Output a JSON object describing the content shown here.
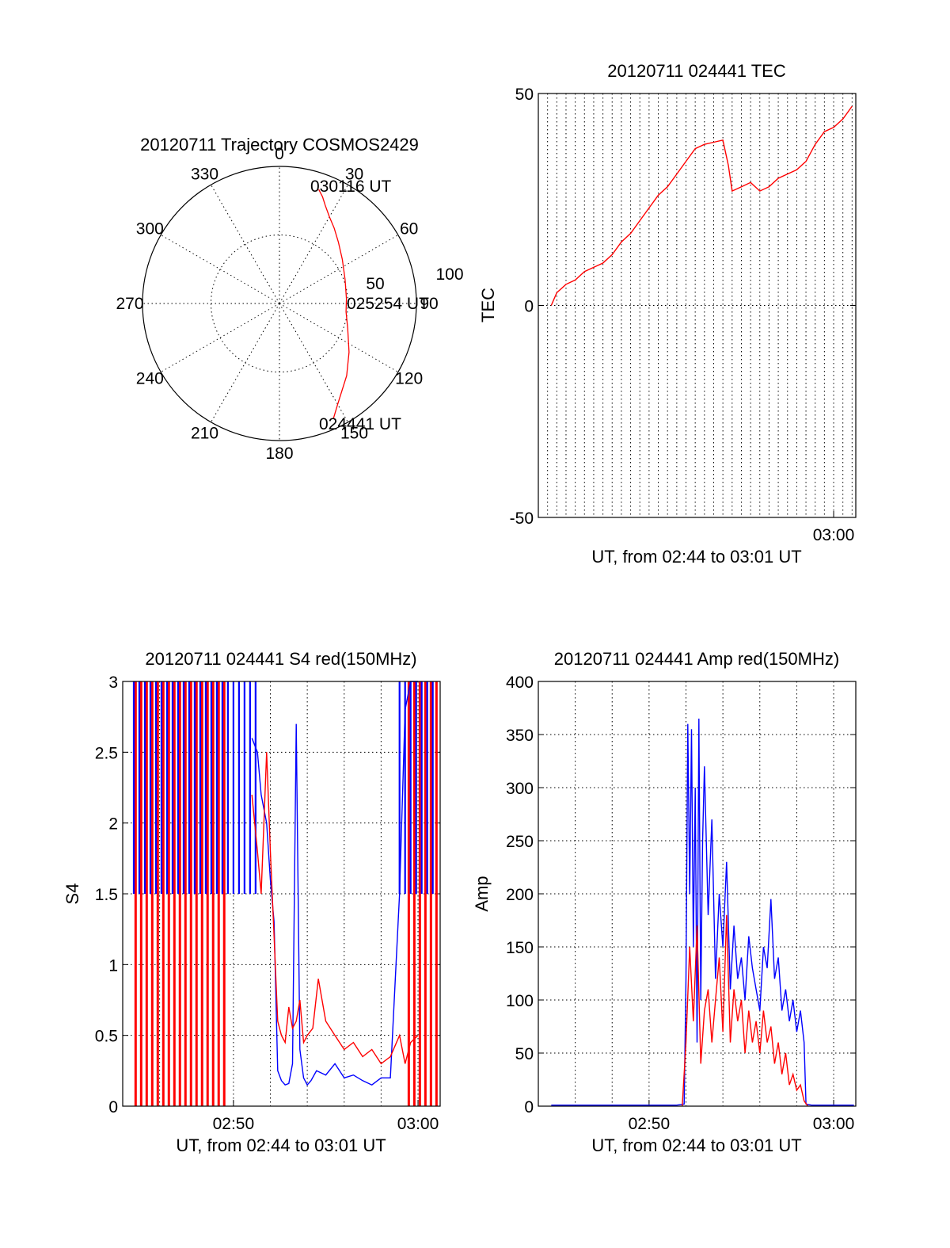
{
  "colors": {
    "red": "#ff0000",
    "blue": "#0000ff",
    "axes": "#000000",
    "background": "#ffffff"
  },
  "chart_data": [
    {
      "id": "polar",
      "type": "polar",
      "title": "20120711 Trajectory COSMOS2429",
      "azimuth_ticks": [
        "0",
        "30",
        "60",
        "90",
        "120",
        "150",
        "180",
        "210",
        "240",
        "270",
        "300",
        "330"
      ],
      "radial_ticks": [
        "50",
        "100"
      ],
      "rlim": [
        0,
        100
      ],
      "grid": true,
      "trajectory": {
        "color": "#ff0000",
        "azimuth_deg": [
          19,
          22,
          25,
          30,
          36,
          44,
          55,
          70,
          86,
          97,
          110,
          125,
          137,
          150,
          155
        ],
        "radius": [
          88,
          84,
          79,
          73,
          68,
          62,
          56,
          51,
          49,
          49,
          53,
          62,
          72,
          85,
          93
        ]
      },
      "labels": {
        "start": "024441 UT",
        "mid": "025254 UT",
        "end": "030116 UT"
      }
    },
    {
      "id": "tec",
      "type": "line",
      "title": "20120711 024441 TEC",
      "xlabel": "UT, from 02:44 to 03:01 UT",
      "ylabel": "TEC",
      "ylim": [
        -50,
        50
      ],
      "xlim_minutes": [
        44.0,
        61.2
      ],
      "y_ticks": [
        "-50",
        "0",
        "50"
      ],
      "x_ticks": [
        {
          "label": "03:00",
          "minute": 60.0
        }
      ],
      "minor_grid_minutes": 0.5,
      "grid": true,
      "series": [
        {
          "color": "#ff0000",
          "x": [
            44.7,
            45.0,
            45.5,
            46.0,
            46.5,
            47.0,
            47.5,
            48.0,
            48.5,
            49.0,
            49.5,
            50.0,
            50.5,
            51.0,
            51.5,
            52.0,
            52.5,
            53.0,
            53.5,
            54.0,
            54.3,
            54.5,
            55.0,
            55.5,
            56.0,
            56.5,
            57.0,
            57.5,
            58.0,
            58.5,
            59.0,
            59.5,
            60.0,
            60.5,
            61.0
          ],
          "y": [
            0,
            3,
            5,
            6,
            8,
            9,
            10,
            12,
            15,
            17,
            20,
            23,
            26,
            28,
            31,
            34,
            37,
            38,
            38.5,
            39,
            33,
            27,
            28,
            29,
            27,
            28,
            30,
            31,
            32,
            34,
            38,
            41,
            42,
            44,
            47
          ]
        }
      ]
    },
    {
      "id": "s4",
      "type": "line",
      "title": "20120711 024441 S4 red(150MHz)",
      "xlabel": "UT, from 02:44 to 03:01 UT",
      "ylabel": "S4",
      "ylim": [
        0,
        3
      ],
      "xlim_minutes": [
        44.0,
        61.2
      ],
      "y_ticks": [
        "0",
        "0.5",
        "1",
        "1.5",
        "2",
        "2.5",
        "3"
      ],
      "x_ticks": [
        {
          "label": "02:50",
          "minute": 50.0
        },
        {
          "label": "03:00",
          "minute": 60.0
        }
      ],
      "grid": true,
      "series": [
        {
          "name": "",
          "color": "#0000ff",
          "x": [
            51.0,
            51.3,
            51.5,
            51.8,
            52.0,
            52.2,
            52.4,
            52.6,
            52.8,
            53.0,
            53.2,
            53.4,
            53.6,
            53.8,
            54.0,
            54.2,
            54.5,
            55.0,
            55.5,
            56.0,
            56.5,
            57.0,
            57.5,
            58.0,
            58.5,
            59.0,
            59.3,
            59.6,
            60.0
          ],
          "y": [
            2.6,
            2.5,
            2.2,
            2.0,
            1.6,
            1.3,
            0.25,
            0.18,
            0.15,
            0.16,
            0.3,
            2.7,
            0.4,
            0.2,
            0.15,
            0.18,
            0.25,
            0.22,
            0.3,
            0.2,
            0.22,
            0.18,
            0.15,
            0.2,
            0.2,
            1.5,
            2.8,
            3,
            3
          ]
        },
        {
          "name": "",
          "color": "#ff0000",
          "x": [
            51.0,
            51.3,
            51.5,
            51.8,
            52.0,
            52.2,
            52.4,
            52.6,
            52.8,
            53.0,
            53.2,
            53.4,
            53.6,
            53.8,
            54.0,
            54.3,
            54.6,
            55.0,
            55.5,
            56.0,
            56.5,
            57.0,
            57.5,
            58.0,
            58.5,
            59.0,
            59.3,
            59.6,
            60.0
          ],
          "y": [
            2.2,
            1.8,
            1.5,
            2.5,
            1.8,
            1.2,
            0.6,
            0.5,
            0.45,
            0.7,
            0.55,
            0.6,
            0.75,
            0.45,
            0.5,
            0.55,
            0.9,
            0.6,
            0.5,
            0.4,
            0.45,
            0.35,
            0.4,
            0.3,
            0.35,
            0.5,
            0.3,
            0.45,
            0.5
          ]
        }
      ],
      "saturated_red_minutes": [
        44.7,
        45.0,
        45.3,
        45.6,
        45.9,
        46.2,
        46.5,
        46.8,
        47.1,
        47.4,
        47.7,
        48.0,
        48.3,
        48.6,
        48.9,
        49.2,
        49.5,
        59.5,
        59.8,
        60.1,
        60.4,
        60.7,
        61.0
      ],
      "saturated_blue_minutes": [
        44.6,
        44.9,
        45.2,
        45.5,
        45.8,
        46.1,
        46.4,
        46.7,
        47.0,
        47.3,
        47.6,
        47.9,
        48.2,
        48.5,
        48.8,
        49.1,
        49.4,
        49.7,
        50.0,
        50.3,
        50.6,
        50.9,
        51.2,
        59.0,
        59.3,
        59.6,
        59.9,
        60.2,
        60.5,
        60.8
      ]
    },
    {
      "id": "amp",
      "type": "line",
      "title": "20120711 024441 Amp red(150MHz)",
      "xlabel": "UT, from 02:44 to 03:01 UT",
      "ylabel": "Amp",
      "ylim": [
        0,
        400
      ],
      "xlim_minutes": [
        44.0,
        61.2
      ],
      "y_ticks": [
        "0",
        "50",
        "100",
        "150",
        "200",
        "250",
        "300",
        "350",
        "400"
      ],
      "x_ticks": [
        {
          "label": "02:50",
          "minute": 50.0
        },
        {
          "label": "03:00",
          "minute": 60.0
        }
      ],
      "grid": true,
      "series": [
        {
          "name": "",
          "color": "#0000ff",
          "x": [
            44.7,
            46.0,
            48.0,
            50.0,
            51.5,
            51.9,
            52.0,
            52.1,
            52.2,
            52.3,
            52.4,
            52.5,
            52.6,
            52.7,
            52.8,
            52.9,
            53.0,
            53.2,
            53.4,
            53.6,
            53.8,
            54.0,
            54.2,
            54.4,
            54.6,
            54.8,
            55.0,
            55.2,
            55.4,
            55.6,
            55.8,
            56.0,
            56.2,
            56.4,
            56.6,
            56.8,
            57.0,
            57.2,
            57.4,
            57.6,
            57.8,
            58.0,
            58.2,
            58.4,
            58.5,
            58.8,
            59.5,
            60.5,
            61.1
          ],
          "y": [
            1,
            1,
            1,
            1,
            1,
            2,
            120,
            360,
            200,
            355,
            150,
            300,
            60,
            365,
            100,
            250,
            320,
            180,
            270,
            120,
            200,
            150,
            230,
            110,
            170,
            120,
            140,
            100,
            160,
            130,
            110,
            90,
            150,
            130,
            195,
            120,
            140,
            90,
            110,
            80,
            100,
            70,
            90,
            60,
            2,
            1,
            1,
            1,
            1
          ]
        },
        {
          "name": "",
          "color": "#ff0000",
          "x": [
            51.8,
            52.0,
            52.2,
            52.4,
            52.6,
            52.8,
            53.0,
            53.2,
            53.4,
            53.6,
            53.8,
            54.0,
            54.2,
            54.4,
            54.6,
            54.8,
            55.0,
            55.2,
            55.4,
            55.6,
            55.8,
            56.0,
            56.2,
            56.4,
            56.6,
            56.8,
            57.0,
            57.2,
            57.4,
            57.6,
            57.8,
            58.0,
            58.2,
            58.4,
            58.6
          ],
          "y": [
            0,
            60,
            150,
            80,
            170,
            40,
            90,
            110,
            60,
            100,
            140,
            70,
            180,
            60,
            110,
            80,
            100,
            50,
            90,
            60,
            80,
            50,
            90,
            60,
            75,
            40,
            60,
            30,
            50,
            20,
            30,
            15,
            20,
            5,
            0
          ]
        }
      ]
    }
  ]
}
